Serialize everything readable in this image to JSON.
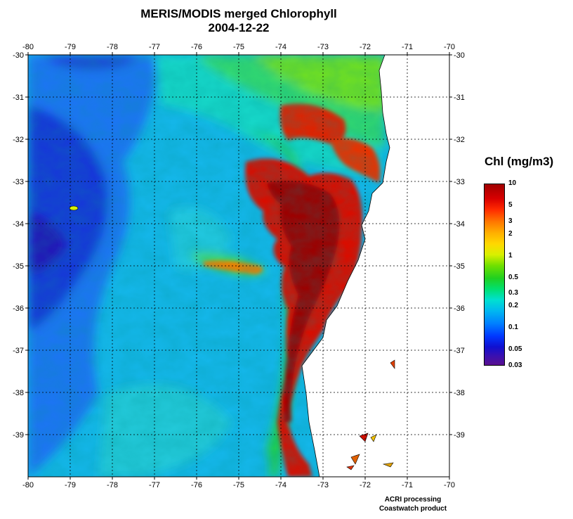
{
  "title": "MERIS/MODIS merged Chlorophyll",
  "date": "2004-12-22",
  "map": {
    "lon_range": [
      -80,
      -70
    ],
    "lat_range": [
      -40,
      -30
    ],
    "lon_ticks": [
      "-80",
      "-79",
      "-78",
      "-77",
      "-76",
      "-75",
      "-74",
      "-73",
      "-72",
      "-71",
      "-70"
    ],
    "lat_ticks": [
      "-30",
      "-31",
      "-32",
      "-33",
      "-34",
      "-35",
      "-36",
      "-37",
      "-38",
      "-39"
    ],
    "grid": "dotted",
    "land_color": "#ffffff"
  },
  "colorbar": {
    "title": "Chl (mg/m3)",
    "labels": [
      "10",
      "5",
      "3",
      "2",
      "1",
      "0.5",
      "0.3",
      "0.2",
      "0.1",
      "0.05",
      "0.03"
    ],
    "values": [
      10,
      5,
      3,
      2,
      1,
      0.5,
      0.3,
      0.2,
      0.1,
      0.05,
      0.03
    ],
    "scale": "log",
    "colors": [
      "#a00000",
      "#ff2a00",
      "#ffb000",
      "#d8f000",
      "#20d020",
      "#00e0d0",
      "#0080ff",
      "#1010d0",
      "#5a1090"
    ]
  },
  "credit": {
    "line1": "ACRI processing",
    "line2": "Coastwatch product"
  }
}
